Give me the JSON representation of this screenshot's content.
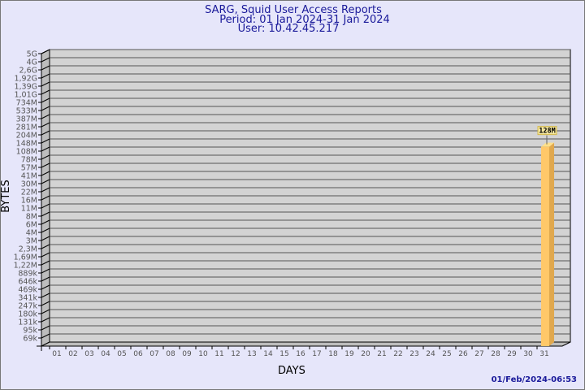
{
  "title_lines": [
    "SARG, Squid User Access Reports",
    "Period: 01 Jan 2024-31 Jan 2024",
    "User: 10.42.45.217"
  ],
  "timestamp": "01/Feb/2024-06:53",
  "colors": {
    "background": "#e6e6fa",
    "plot": "#d3d3d3",
    "bar": "#ffc869",
    "bar_side": "#e0a84e",
    "title": "#1a1a9a"
  },
  "chart_data": {
    "type": "bar",
    "style": "3d",
    "xlabel": "DAYS",
    "ylabel": "BYTES",
    "y_scale": "log",
    "grid": true,
    "categories": [
      "01",
      "02",
      "03",
      "04",
      "05",
      "06",
      "07",
      "08",
      "09",
      "10",
      "11",
      "12",
      "13",
      "14",
      "15",
      "16",
      "17",
      "18",
      "19",
      "20",
      "21",
      "22",
      "23",
      "24",
      "25",
      "26",
      "27",
      "28",
      "29",
      "30",
      "31"
    ],
    "y_tick_labels": [
      "5G",
      "4G",
      "2,6G",
      "1,92G",
      "1,39G",
      "1,01G",
      "734M",
      "533M",
      "387M",
      "281M",
      "204M",
      "148M",
      "108M",
      "78M",
      "57M",
      "41M",
      "30M",
      "22M",
      "16M",
      "11M",
      "8M",
      "6M",
      "4M",
      "3M",
      "2,3M",
      "1,69M",
      "1,22M",
      "889k",
      "646k",
      "469k",
      "341k",
      "247k",
      "180k",
      "131k",
      "95k",
      "69k"
    ],
    "values": [
      null,
      null,
      null,
      null,
      null,
      null,
      null,
      null,
      null,
      null,
      null,
      null,
      null,
      null,
      null,
      null,
      null,
      null,
      null,
      null,
      null,
      null,
      null,
      null,
      null,
      null,
      null,
      null,
      null,
      null,
      128
    ],
    "value_unit": "M",
    "data_labels": {
      "31": "128M"
    }
  }
}
